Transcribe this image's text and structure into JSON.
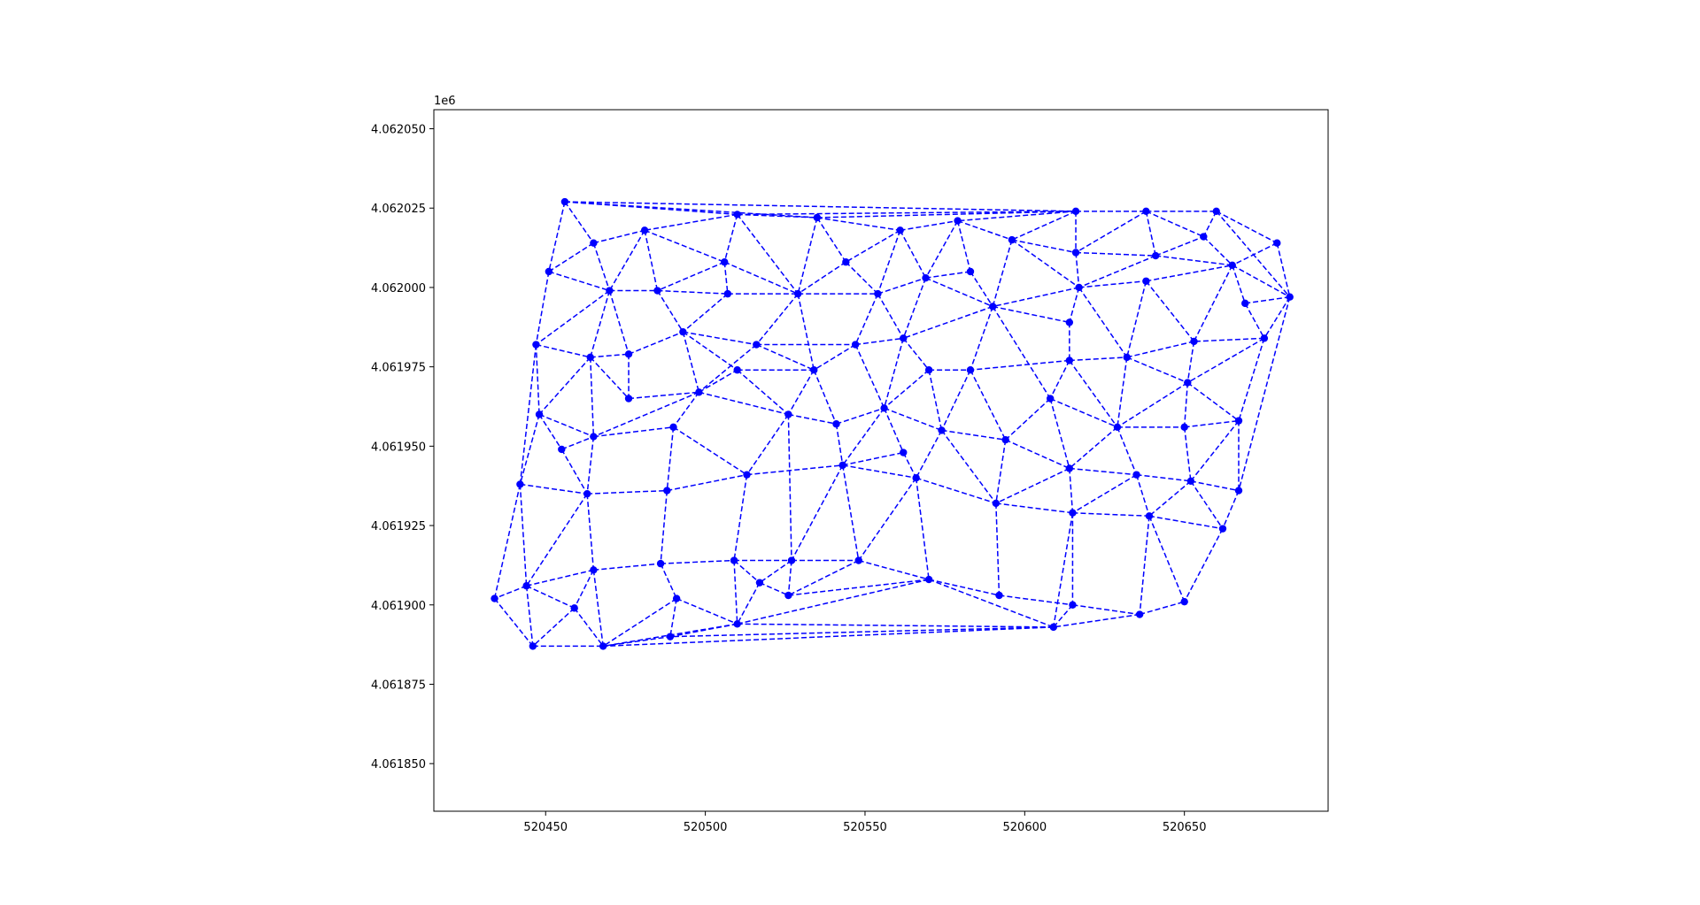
{
  "figure": {
    "y_offset_label": "1e6"
  },
  "chart_data": {
    "type": "scatter",
    "title": "",
    "xlabel": "",
    "ylabel": "",
    "xlim": [
      520415,
      520695
    ],
    "ylim": [
      4061835,
      4062056
    ],
    "grid": false,
    "legend": null,
    "style": {
      "color": "#0000ff",
      "line_style": "dashed",
      "marker": "circle"
    },
    "x_ticks": [
      520450,
      520500,
      520550,
      520600,
      520650
    ],
    "x_tick_labels": [
      "520450",
      "520500",
      "520550",
      "520600",
      "520650"
    ],
    "y_ticks": [
      4061850,
      4061875,
      4061900,
      4061925,
      4061950,
      4061975,
      4062000,
      4062025,
      4062050
    ],
    "y_tick_labels": [
      "4.061850",
      "4.061875",
      "4.061900",
      "4.061925",
      "4.061950",
      "4.061975",
      "4.062000",
      "4.062025",
      "4.062050"
    ],
    "points": [
      [
        520456,
        4062027
      ],
      [
        520510,
        4062023
      ],
      [
        520535,
        4062022
      ],
      [
        520616,
        4062024
      ],
      [
        520638,
        4062024
      ],
      [
        520660,
        4062024
      ],
      [
        520465,
        4062014
      ],
      [
        520481,
        4062018
      ],
      [
        520561,
        4062018
      ],
      [
        520579,
        4062021
      ],
      [
        520596,
        4062015
      ],
      [
        520616,
        4062011
      ],
      [
        520641,
        4062010
      ],
      [
        520656,
        4062016
      ],
      [
        520679,
        4062014
      ],
      [
        520451,
        4062005
      ],
      [
        520506,
        4062008
      ],
      [
        520544,
        4062008
      ],
      [
        520583,
        4062005
      ],
      [
        520470,
        4061999
      ],
      [
        520485,
        4061999
      ],
      [
        520507,
        4061998
      ],
      [
        520529,
        4061998
      ],
      [
        520554,
        4061998
      ],
      [
        520569,
        4062003
      ],
      [
        520617,
        4062000
      ],
      [
        520638,
        4062002
      ],
      [
        520665,
        4062007
      ],
      [
        520683,
        4061997
      ],
      [
        520669,
        4061995
      ],
      [
        520590,
        4061994
      ],
      [
        520614,
        4061989
      ],
      [
        520675,
        4061984
      ],
      [
        520447,
        4061982
      ],
      [
        520464,
        4061978
      ],
      [
        520476,
        4061979
      ],
      [
        520493,
        4061986
      ],
      [
        520516,
        4061982
      ],
      [
        520547,
        4061982
      ],
      [
        520562,
        4061984
      ],
      [
        520614,
        4061977
      ],
      [
        520632,
        4061978
      ],
      [
        520653,
        4061983
      ],
      [
        520448,
        4061960
      ],
      [
        520476,
        4061965
      ],
      [
        520498,
        4061967
      ],
      [
        520510,
        4061974
      ],
      [
        520534,
        4061974
      ],
      [
        520570,
        4061974
      ],
      [
        520583,
        4061974
      ],
      [
        520608,
        4061965
      ],
      [
        520651,
        4061970
      ],
      [
        520526,
        4061960
      ],
      [
        520541,
        4061957
      ],
      [
        520556,
        4061962
      ],
      [
        520574,
        4061955
      ],
      [
        520594,
        4061952
      ],
      [
        520629,
        4061956
      ],
      [
        520650,
        4061956
      ],
      [
        520667,
        4061958
      ],
      [
        520455,
        4061949
      ],
      [
        520465,
        4061953
      ],
      [
        520490,
        4061956
      ],
      [
        520442,
        4061938
      ],
      [
        520463,
        4061935
      ],
      [
        520488,
        4061936
      ],
      [
        520513,
        4061941
      ],
      [
        520543,
        4061944
      ],
      [
        520562,
        4061948
      ],
      [
        520566,
        4061940
      ],
      [
        520614,
        4061943
      ],
      [
        520635,
        4061941
      ],
      [
        520652,
        4061939
      ],
      [
        520667,
        4061936
      ],
      [
        520591,
        4061932
      ],
      [
        520615,
        4061929
      ],
      [
        520639,
        4061928
      ],
      [
        520662,
        4061924
      ],
      [
        520444,
        4061906
      ],
      [
        520465,
        4061911
      ],
      [
        520486,
        4061913
      ],
      [
        520509,
        4061914
      ],
      [
        520527,
        4061914
      ],
      [
        520548,
        4061914
      ],
      [
        520517,
        4061907
      ],
      [
        520526,
        4061903
      ],
      [
        520570,
        4061908
      ],
      [
        520592,
        4061903
      ],
      [
        520615,
        4061900
      ],
      [
        520636,
        4061897
      ],
      [
        520650,
        4061901
      ],
      [
        520434,
        4061902
      ],
      [
        520459,
        4061899
      ],
      [
        520491,
        4061902
      ],
      [
        520510,
        4061894
      ],
      [
        520609,
        4061893
      ],
      [
        520446,
        4061887
      ],
      [
        520468,
        4061887
      ],
      [
        520489,
        4061890
      ]
    ],
    "edges": [
      [
        0,
        1
      ],
      [
        0,
        2
      ],
      [
        0,
        3
      ],
      [
        0,
        6
      ],
      [
        0,
        15
      ],
      [
        1,
        2
      ],
      [
        1,
        3
      ],
      [
        1,
        7
      ],
      [
        1,
        16
      ],
      [
        1,
        22
      ],
      [
        2,
        3
      ],
      [
        2,
        8
      ],
      [
        2,
        17
      ],
      [
        2,
        22
      ],
      [
        3,
        4
      ],
      [
        3,
        9
      ],
      [
        3,
        10
      ],
      [
        3,
        11
      ],
      [
        4,
        5
      ],
      [
        4,
        11
      ],
      [
        4,
        12
      ],
      [
        4,
        13
      ],
      [
        5,
        13
      ],
      [
        5,
        14
      ],
      [
        5,
        28
      ],
      [
        6,
        7
      ],
      [
        6,
        15
      ],
      [
        6,
        19
      ],
      [
        7,
        16
      ],
      [
        7,
        19
      ],
      [
        7,
        20
      ],
      [
        8,
        9
      ],
      [
        8,
        17
      ],
      [
        8,
        23
      ],
      [
        8,
        24
      ],
      [
        9,
        10
      ],
      [
        9,
        18
      ],
      [
        9,
        24
      ],
      [
        10,
        11
      ],
      [
        10,
        25
      ],
      [
        10,
        30
      ],
      [
        11,
        12
      ],
      [
        11,
        25
      ],
      [
        12,
        13
      ],
      [
        12,
        27
      ],
      [
        12,
        25
      ],
      [
        13,
        27
      ],
      [
        14,
        27
      ],
      [
        14,
        28
      ],
      [
        15,
        19
      ],
      [
        15,
        33
      ],
      [
        16,
        20
      ],
      [
        16,
        21
      ],
      [
        16,
        22
      ],
      [
        17,
        22
      ],
      [
        17,
        23
      ],
      [
        18,
        24
      ],
      [
        18,
        30
      ],
      [
        19,
        20
      ],
      [
        19,
        33
      ],
      [
        19,
        34
      ],
      [
        19,
        35
      ],
      [
        20,
        36
      ],
      [
        20,
        21
      ],
      [
        21,
        22
      ],
      [
        21,
        36
      ],
      [
        22,
        23
      ],
      [
        22,
        37
      ],
      [
        22,
        47
      ],
      [
        23,
        24
      ],
      [
        23,
        39
      ],
      [
        23,
        38
      ],
      [
        24,
        30
      ],
      [
        24,
        39
      ],
      [
        25,
        26
      ],
      [
        25,
        30
      ],
      [
        25,
        31
      ],
      [
        25,
        41
      ],
      [
        26,
        27
      ],
      [
        26,
        41
      ],
      [
        26,
        42
      ],
      [
        27,
        28
      ],
      [
        27,
        29
      ],
      [
        27,
        42
      ],
      [
        28,
        29
      ],
      [
        28,
        32
      ],
      [
        28,
        73
      ],
      [
        29,
        32
      ],
      [
        30,
        31
      ],
      [
        30,
        39
      ],
      [
        30,
        49
      ],
      [
        30,
        50
      ],
      [
        31,
        40
      ],
      [
        32,
        59
      ],
      [
        32,
        51
      ],
      [
        32,
        42
      ],
      [
        33,
        34
      ],
      [
        33,
        43
      ],
      [
        33,
        63
      ],
      [
        34,
        35
      ],
      [
        34,
        43
      ],
      [
        34,
        44
      ],
      [
        34,
        61
      ],
      [
        35,
        36
      ],
      [
        35,
        44
      ],
      [
        36,
        37
      ],
      [
        36,
        45
      ],
      [
        36,
        46
      ],
      [
        37,
        38
      ],
      [
        37,
        45
      ],
      [
        37,
        47
      ],
      [
        38,
        39
      ],
      [
        38,
        47
      ],
      [
        38,
        54
      ],
      [
        39,
        48
      ],
      [
        39,
        54
      ],
      [
        40,
        41
      ],
      [
        40,
        49
      ],
      [
        40,
        50
      ],
      [
        40,
        57
      ],
      [
        41,
        42
      ],
      [
        41,
        51
      ],
      [
        41,
        57
      ],
      [
        42,
        51
      ],
      [
        43,
        60
      ],
      [
        43,
        61
      ],
      [
        43,
        63
      ],
      [
        44,
        45
      ],
      [
        45,
        46
      ],
      [
        45,
        52
      ],
      [
        45,
        62
      ],
      [
        45,
        61
      ],
      [
        46,
        47
      ],
      [
        46,
        52
      ],
      [
        47,
        52
      ],
      [
        47,
        53
      ],
      [
        48,
        49
      ],
      [
        48,
        54
      ],
      [
        48,
        55
      ],
      [
        49,
        55
      ],
      [
        49,
        56
      ],
      [
        50,
        56
      ],
      [
        50,
        57
      ],
      [
        50,
        70
      ],
      [
        51,
        58
      ],
      [
        51,
        59
      ],
      [
        51,
        57
      ],
      [
        52,
        53
      ],
      [
        52,
        66
      ],
      [
        52,
        82
      ],
      [
        53,
        54
      ],
      [
        53,
        67
      ],
      [
        54,
        55
      ],
      [
        54,
        67
      ],
      [
        54,
        68
      ],
      [
        55,
        56
      ],
      [
        55,
        69
      ],
      [
        55,
        74
      ],
      [
        56,
        70
      ],
      [
        56,
        74
      ],
      [
        57,
        58
      ],
      [
        57,
        71
      ],
      [
        57,
        70
      ],
      [
        58,
        59
      ],
      [
        58,
        72
      ],
      [
        59,
        73
      ],
      [
        59,
        72
      ],
      [
        60,
        61
      ],
      [
        60,
        64
      ],
      [
        61,
        62
      ],
      [
        61,
        64
      ],
      [
        62,
        65
      ],
      [
        62,
        66
      ],
      [
        63,
        64
      ],
      [
        63,
        78
      ],
      [
        63,
        91
      ],
      [
        64,
        65
      ],
      [
        64,
        78
      ],
      [
        64,
        79
      ],
      [
        65,
        66
      ],
      [
        65,
        80
      ],
      [
        66,
        67
      ],
      [
        66,
        81
      ],
      [
        67,
        68
      ],
      [
        67,
        69
      ],
      [
        67,
        82
      ],
      [
        67,
        83
      ],
      [
        68,
        69
      ],
      [
        69,
        74
      ],
      [
        69,
        83
      ],
      [
        69,
        86
      ],
      [
        70,
        71
      ],
      [
        70,
        74
      ],
      [
        70,
        75
      ],
      [
        71,
        72
      ],
      [
        71,
        75
      ],
      [
        71,
        76
      ],
      [
        72,
        73
      ],
      [
        72,
        76
      ],
      [
        72,
        77
      ],
      [
        73,
        77
      ],
      [
        74,
        75
      ],
      [
        74,
        87
      ],
      [
        75,
        76
      ],
      [
        75,
        88
      ],
      [
        75,
        95
      ],
      [
        76,
        77
      ],
      [
        76,
        89
      ],
      [
        76,
        90
      ],
      [
        77,
        90
      ],
      [
        78,
        79
      ],
      [
        78,
        91
      ],
      [
        78,
        96
      ],
      [
        78,
        92
      ],
      [
        79,
        80
      ],
      [
        79,
        92
      ],
      [
        79,
        97
      ],
      [
        80,
        81
      ],
      [
        80,
        93
      ],
      [
        81,
        84
      ],
      [
        81,
        94
      ],
      [
        81,
        82
      ],
      [
        82,
        83
      ],
      [
        82,
        84
      ],
      [
        82,
        85
      ],
      [
        83,
        85
      ],
      [
        83,
        86
      ],
      [
        84,
        85
      ],
      [
        84,
        94
      ],
      [
        85,
        86
      ],
      [
        86,
        87
      ],
      [
        86,
        94
      ],
      [
        86,
        95
      ],
      [
        87,
        88
      ],
      [
        88,
        89
      ],
      [
        88,
        95
      ],
      [
        89,
        90
      ],
      [
        89,
        95
      ],
      [
        91,
        96
      ],
      [
        92,
        96
      ],
      [
        92,
        97
      ],
      [
        93,
        94
      ],
      [
        93,
        97
      ],
      [
        93,
        98
      ],
      [
        94,
        95
      ],
      [
        94,
        97
      ],
      [
        94,
        98
      ],
      [
        95,
        97
      ],
      [
        95,
        98
      ],
      [
        96,
        97
      ],
      [
        97,
        98
      ]
    ]
  }
}
